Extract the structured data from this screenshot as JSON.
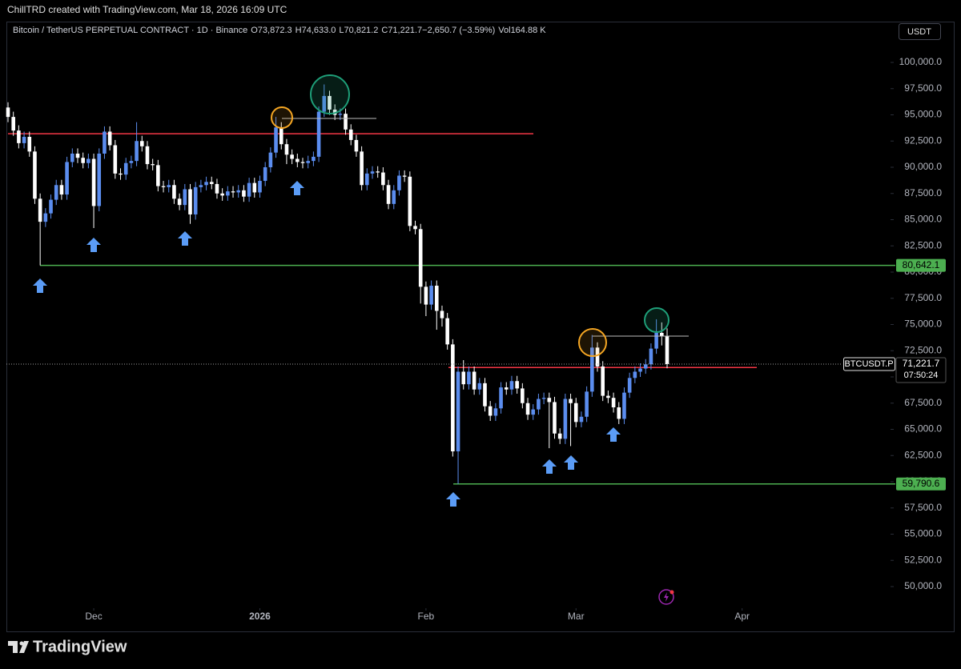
{
  "header": {
    "text": "ChillTRD created with TradingView.com, Mar 18, 2026 16:09 UTC"
  },
  "chart_data": {
    "type": "candlestick",
    "symbol": "Bitcoin / TetherUS PERPETUAL CONTRACT · 1D · Binance",
    "legend": [
      {
        "key": "O",
        "value": "73,872.3"
      },
      {
        "key": "H",
        "value": "74,633.0"
      },
      {
        "key": "L",
        "value": "70,821.2"
      },
      {
        "key": "C",
        "value": "71,221.7"
      },
      {
        "key": "",
        "value": "−2,650.7 (−3.59%)"
      },
      {
        "key": "Vol",
        "value": "164.88 K"
      }
    ],
    "currency": "USDT",
    "open": [
      95700,
      94800,
      93500,
      92300,
      92900,
      91500,
      87000,
      84800,
      85600,
      86900,
      88300,
      87400,
      90500,
      91300,
      90900,
      90400,
      90800,
      86300,
      91300,
      93400,
      92100,
      89400,
      89300,
      90400,
      90600,
      92500,
      92000,
      90300,
      90200,
      88200,
      88100,
      88300,
      87000,
      86400,
      87900,
      85500,
      88100,
      88300,
      88600,
      88400,
      87500,
      87300,
      87700,
      87600,
      87800,
      87200,
      88500,
      87600,
      88700,
      90000,
      91400,
      93800,
      92200,
      91200,
      90800,
      90500,
      90400,
      90600,
      91000,
      95300,
      96800,
      95500,
      95000,
      95100,
      93600,
      92600,
      91500,
      88300,
      89400,
      89600,
      89500,
      88300,
      86500,
      87800,
      89200,
      89100,
      84400,
      84100,
      78600,
      76900,
      78700,
      76300,
      75600,
      73100,
      62900,
      70500,
      69300,
      70500,
      68800,
      69400,
      67200,
      66300,
      67000,
      69000,
      68800,
      69600,
      68900,
      67500,
      66400,
      66900,
      67900,
      68000,
      67600,
      64600,
      64100,
      67900,
      67500,
      65700,
      66200,
      68600,
      72800,
      71000,
      68200,
      68000,
      67100,
      66000,
      68500,
      69900,
      70500,
      70800,
      71200,
      72700,
      74200,
      73872.3
    ],
    "high": [
      96200,
      95300,
      94000,
      93400,
      93400,
      92000,
      87500,
      86100,
      87400,
      88800,
      88800,
      91000,
      91800,
      91800,
      91400,
      91300,
      91300,
      91800,
      93900,
      93900,
      92600,
      89900,
      90900,
      91100,
      94300,
      93000,
      92500,
      90800,
      90700,
      88700,
      88800,
      88800,
      87500,
      88400,
      88400,
      88600,
      88800,
      89100,
      89100,
      88900,
      88000,
      88200,
      88200,
      88300,
      88300,
      89000,
      89000,
      89200,
      90500,
      91900,
      94800,
      94300,
      92700,
      91700,
      91300,
      90900,
      91100,
      91500,
      95800,
      97900,
      97300,
      96000,
      95600,
      95600,
      94100,
      93100,
      92000,
      89900,
      90100,
      90100,
      90000,
      88800,
      88300,
      89700,
      89700,
      89600,
      84900,
      84600,
      79100,
      79200,
      79200,
      76800,
      76100,
      73600,
      71000,
      71600,
      71000,
      71000,
      69900,
      69900,
      67700,
      67500,
      69500,
      69500,
      70100,
      70100,
      69400,
      68000,
      67400,
      68400,
      68500,
      68500,
      68100,
      65100,
      68400,
      68400,
      68000,
      66700,
      69100,
      74000,
      73300,
      71500,
      68700,
      68500,
      67600,
      69000,
      70400,
      71000,
      71300,
      71700,
      73200,
      75500,
      75200,
      74633.0
    ],
    "low": [
      94300,
      93000,
      91800,
      91800,
      91000,
      86500,
      80642.1,
      84300,
      85100,
      86400,
      86900,
      86900,
      90000,
      90400,
      89900,
      89900,
      84200,
      85800,
      90800,
      91600,
      88900,
      88800,
      88800,
      89900,
      90100,
      91500,
      89800,
      89700,
      87700,
      87600,
      87600,
      86500,
      85900,
      85900,
      84600,
      85000,
      87600,
      87800,
      87900,
      87000,
      86800,
      86800,
      87100,
      87100,
      86700,
      86700,
      87100,
      87100,
      88200,
      89500,
      90900,
      91700,
      90300,
      90300,
      90000,
      89900,
      89900,
      90100,
      90500,
      94800,
      95000,
      94500,
      94500,
      93100,
      92100,
      91000,
      87800,
      87800,
      88900,
      89000,
      87800,
      86000,
      86000,
      87300,
      88600,
      83900,
      83600,
      77000,
      75800,
      76400,
      74500,
      74800,
      72600,
      62400,
      59790.6,
      68800,
      68800,
      68300,
      68300,
      66700,
      65800,
      65800,
      66500,
      68300,
      68300,
      68400,
      67000,
      65900,
      65900,
      66400,
      67400,
      63200,
      64100,
      63600,
      63600,
      63400,
      65200,
      65200,
      65700,
      68100,
      70500,
      67700,
      67500,
      66600,
      65500,
      65500,
      68000,
      69400,
      70000,
      70300,
      70700,
      72200,
      73000,
      70821.2
    ],
    "close": [
      94800,
      93500,
      92300,
      92900,
      91500,
      87000,
      84800,
      85600,
      86900,
      88300,
      87400,
      90500,
      91300,
      90900,
      90400,
      90800,
      86300,
      91300,
      93400,
      92100,
      89400,
      89300,
      90400,
      90600,
      92500,
      92000,
      90300,
      90200,
      88200,
      88100,
      88300,
      87000,
      86400,
      87900,
      85500,
      88100,
      88300,
      88600,
      88400,
      87500,
      87300,
      87700,
      87600,
      87800,
      87200,
      88500,
      87600,
      88700,
      90000,
      91400,
      93800,
      92200,
      91200,
      90800,
      90500,
      90400,
      90600,
      91000,
      95300,
      96800,
      95500,
      95000,
      95100,
      93600,
      92600,
      91500,
      88300,
      89400,
      89600,
      89500,
      88300,
      86500,
      87800,
      89200,
      89100,
      84400,
      84100,
      78600,
      76900,
      78700,
      76300,
      75600,
      73100,
      62900,
      70500,
      69300,
      70500,
      68800,
      69400,
      67200,
      66300,
      67000,
      69000,
      68800,
      69600,
      68900,
      67500,
      66400,
      66900,
      67900,
      68000,
      67600,
      64600,
      64100,
      67900,
      67500,
      65700,
      66200,
      68600,
      72800,
      71000,
      68200,
      68000,
      67100,
      66000,
      68500,
      69900,
      70500,
      70800,
      71200,
      72700,
      74200,
      73872.3,
      71221.7
    ],
    "up_color": "#5b8def",
    "down_color": "#ffffff",
    "xlim": [
      -0.3,
      164.4
    ],
    "xticks": [
      {
        "value": 16,
        "label": "Dec"
      },
      {
        "value": 47,
        "label": "2026"
      },
      {
        "value": 78,
        "label": "Feb"
      },
      {
        "value": 106,
        "label": "Mar"
      },
      {
        "value": 137,
        "label": "Apr"
      }
    ],
    "ylim": [
      47939,
      103664
    ],
    "yticks": [
      {
        "value": 50000,
        "label": "50,000.0"
      },
      {
        "value": 52500,
        "label": "52,500.0"
      },
      {
        "value": 55000,
        "label": "55,000.0"
      },
      {
        "value": 57500,
        "label": "57,500.0"
      },
      {
        "value": 60000,
        "label": "60,000.0"
      },
      {
        "value": 62500,
        "label": "62,500.0"
      },
      {
        "value": 65000,
        "label": "65,000.0"
      },
      {
        "value": 67500,
        "label": "67,500.0"
      },
      {
        "value": 70000,
        "label": "70,000.0"
      },
      {
        "value": 72500,
        "label": "72,500.0"
      },
      {
        "value": 75000,
        "label": "75,000.0"
      },
      {
        "value": 77500,
        "label": "77,500.0"
      },
      {
        "value": 80000,
        "label": "80,000.0"
      },
      {
        "value": 82500,
        "label": "82,500.0"
      },
      {
        "value": 85000,
        "label": "85,000.0"
      },
      {
        "value": 87500,
        "label": "87,500.0"
      },
      {
        "value": 90000,
        "label": "90,000.0"
      },
      {
        "value": 92500,
        "label": "92,500.0"
      },
      {
        "value": 95000,
        "label": "95,000.0"
      },
      {
        "value": 97500,
        "label": "97,500.0"
      },
      {
        "value": 100000,
        "label": "100,000.0"
      }
    ],
    "levels": [
      {
        "value": 80642.1,
        "label": "80,642.1",
        "color": "#4caf50"
      },
      {
        "value": 59790.6,
        "label": "59,790.6",
        "color": "#4caf50"
      }
    ],
    "red_levels": [
      93200,
      70900
    ],
    "red_color": "#f23645",
    "last_price": {
      "value": 71221.7,
      "label": "71,221.7",
      "symbol": "BTCUSDT.P",
      "countdown": "07:50:24"
    }
  },
  "footer": {
    "brand": "TradingView"
  }
}
